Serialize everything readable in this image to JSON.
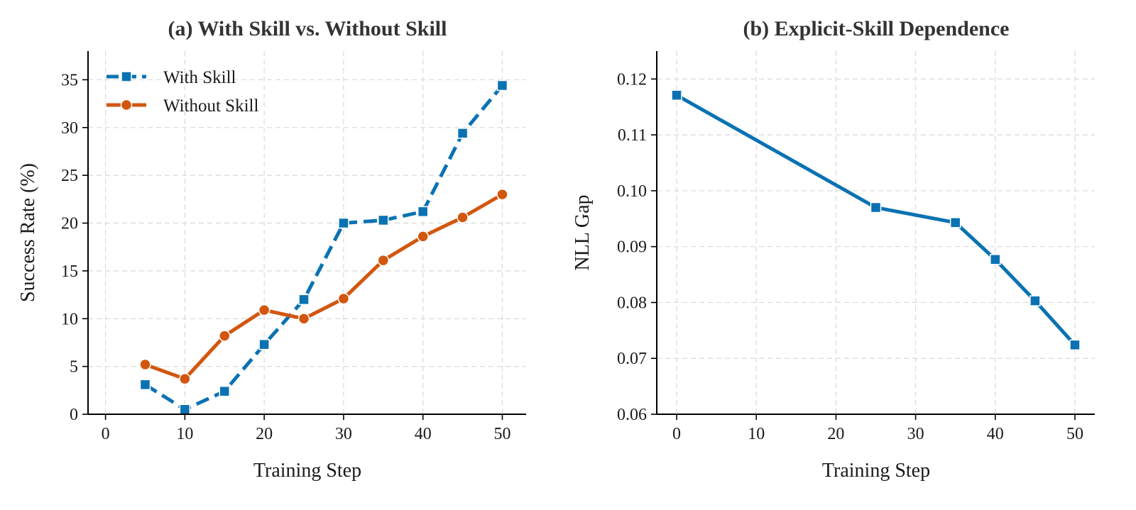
{
  "chart_data": [
    {
      "type": "line",
      "title": "(a) With Skill vs. Without Skill",
      "xlabel": "Training Step",
      "ylabel": "Success Rate (%)",
      "xlim": [
        -2.2,
        53
      ],
      "ylim": [
        0,
        38
      ],
      "xticks": [
        0,
        10,
        20,
        30,
        40,
        50
      ],
      "yticks": [
        0,
        5,
        10,
        15,
        20,
        25,
        30,
        35
      ],
      "xtick_labels": [
        "0",
        "10",
        "20",
        "30",
        "40",
        "50"
      ],
      "ytick_labels": [
        "0",
        "5",
        "10",
        "15",
        "20",
        "25",
        "30",
        "35"
      ],
      "grid": true,
      "legend": "top-left",
      "series": [
        {
          "name": "With Skill",
          "color": "#0a72b2",
          "marker": "square",
          "linestyle": "dashed",
          "x": [
            5,
            10,
            15,
            20,
            25,
            30,
            35,
            40,
            45,
            50
          ],
          "y": [
            3.1,
            0.5,
            2.4,
            7.3,
            12.0,
            20.0,
            20.3,
            21.2,
            29.4,
            34.4
          ]
        },
        {
          "name": "Without Skill",
          "color": "#d3560f",
          "marker": "circle",
          "linestyle": "solid",
          "x": [
            5,
            10,
            15,
            20,
            25,
            30,
            35,
            40,
            45,
            50
          ],
          "y": [
            5.2,
            3.7,
            8.2,
            10.9,
            10.0,
            12.1,
            16.1,
            18.6,
            20.6,
            23.0
          ]
        }
      ]
    },
    {
      "type": "line",
      "title": "(b) Explicit-Skill Dependence",
      "xlabel": "Training Step",
      "ylabel": "NLL Gap",
      "xlim": [
        -2.5,
        52.5
      ],
      "ylim": [
        0.06,
        0.125
      ],
      "xticks": [
        0,
        10,
        20,
        30,
        40,
        50
      ],
      "yticks": [
        0.06,
        0.07,
        0.08,
        0.09,
        0.1,
        0.11,
        0.12
      ],
      "xtick_labels": [
        "0",
        "10",
        "20",
        "30",
        "40",
        "50"
      ],
      "ytick_labels": [
        "0.06",
        "0.07",
        "0.08",
        "0.09",
        "0.10",
        "0.11",
        "0.12"
      ],
      "grid": true,
      "series": [
        {
          "color": "#0a72b2",
          "marker": "square",
          "linestyle": "solid",
          "x": [
            0,
            25,
            35,
            40,
            45,
            50
          ],
          "y": [
            0.1171,
            0.097,
            0.0943,
            0.0877,
            0.0803,
            0.0724
          ]
        }
      ]
    }
  ]
}
